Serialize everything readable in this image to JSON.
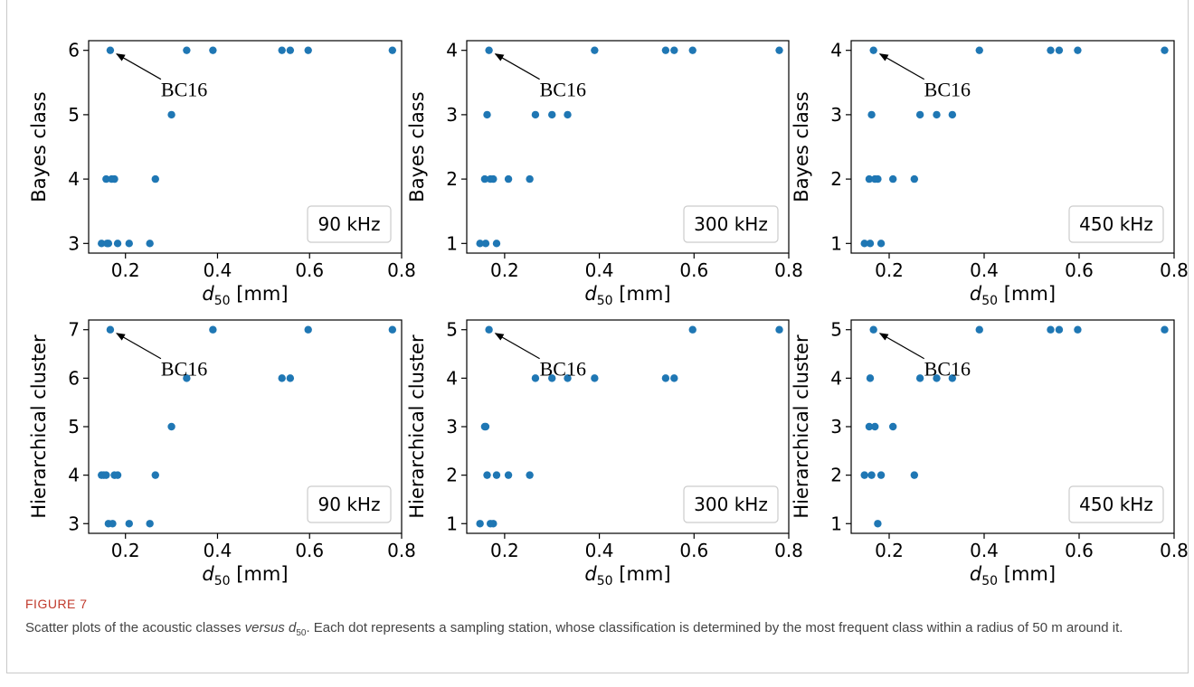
{
  "caption": {
    "label": "FIGURE 7",
    "text_a": "Scatter plots of the acoustic classes ",
    "text_versus": "versus",
    "text_d": " d",
    "text_sub": "50",
    "text_b": ". Each dot represents a sampling station, whose classification is determined by the most frequent class within a radius of 50 m around it."
  },
  "colors": {
    "points": "#1f77b4",
    "axes": "#000000",
    "legend_border": "#cccccc"
  },
  "x_values": [
    0.148,
    0.158,
    0.163,
    0.167,
    0.176,
    0.183,
    0.208,
    0.253,
    0.265,
    0.3,
    0.333,
    0.39,
    0.54,
    0.558,
    0.597,
    0.78
  ],
  "chart_data": [
    {
      "type": "scatter",
      "id": "bayes-90",
      "x": [
        0.148,
        0.158,
        0.163,
        0.167,
        0.176,
        0.183,
        0.208,
        0.253,
        0.265,
        0.3,
        0.333,
        0.39,
        0.54,
        0.558,
        0.597,
        0.78,
        0.16,
        0.17
      ],
      "y": [
        3,
        4,
        3,
        6,
        4,
        3,
        3,
        3,
        4,
        5,
        6,
        6,
        6,
        6,
        6,
        6,
        3,
        4
      ],
      "xlabel": "d",
      "xlabel_sub": "50",
      "xlabel_unit": " [mm]",
      "ylabel": "Bayes class",
      "xlim": [
        0.12,
        0.8
      ],
      "ylim": [
        2.85,
        6.15
      ],
      "xticks": [
        0.2,
        0.4,
        0.6,
        0.8
      ],
      "xtick_labels": [
        "0.2",
        "0.4",
        "0.6",
        "0.8"
      ],
      "yticks": [
        3,
        4,
        5,
        6
      ],
      "ytick_labels": [
        "3",
        "4",
        "5",
        "6"
      ],
      "legend": "90 kHz",
      "legend_placement": "bottom-right",
      "annotation": {
        "text": "BC16",
        "x": 0.167,
        "y": 6
      }
    },
    {
      "type": "scatter",
      "id": "bayes-300",
      "x": [
        0.148,
        0.158,
        0.163,
        0.167,
        0.176,
        0.183,
        0.208,
        0.253,
        0.265,
        0.3,
        0.333,
        0.39,
        0.54,
        0.558,
        0.597,
        0.78,
        0.16,
        0.17
      ],
      "y": [
        1,
        2,
        3,
        4,
        2,
        1,
        2,
        2,
        3,
        3,
        3,
        4,
        4,
        4,
        4,
        4,
        1,
        2
      ],
      "xlabel": "d",
      "xlabel_sub": "50",
      "xlabel_unit": " [mm]",
      "ylabel": "Bayes class",
      "xlim": [
        0.12,
        0.8
      ],
      "ylim": [
        0.85,
        4.15
      ],
      "xticks": [
        0.2,
        0.4,
        0.6,
        0.8
      ],
      "xtick_labels": [
        "0.2",
        "0.4",
        "0.6",
        "0.8"
      ],
      "yticks": [
        1,
        2,
        3,
        4
      ],
      "ytick_labels": [
        "1",
        "2",
        "3",
        "4"
      ],
      "legend": "300 kHz",
      "legend_placement": "bottom-right",
      "annotation": {
        "text": "BC16",
        "x": 0.167,
        "y": 4
      }
    },
    {
      "type": "scatter",
      "id": "bayes-450",
      "x": [
        0.148,
        0.158,
        0.163,
        0.167,
        0.176,
        0.183,
        0.208,
        0.253,
        0.265,
        0.3,
        0.333,
        0.39,
        0.54,
        0.558,
        0.597,
        0.78,
        0.16,
        0.17
      ],
      "y": [
        1,
        2,
        3,
        4,
        2,
        1,
        2,
        2,
        3,
        3,
        3,
        4,
        4,
        4,
        4,
        4,
        1,
        2
      ],
      "xlabel": "d",
      "xlabel_sub": "50",
      "xlabel_unit": " [mm]",
      "ylabel": "Bayes class",
      "xlim": [
        0.12,
        0.8
      ],
      "ylim": [
        0.85,
        4.15
      ],
      "xticks": [
        0.2,
        0.4,
        0.6,
        0.8
      ],
      "xtick_labels": [
        "0.2",
        "0.4",
        "0.6",
        "0.8"
      ],
      "yticks": [
        1,
        2,
        3,
        4
      ],
      "ytick_labels": [
        "1",
        "2",
        "3",
        "4"
      ],
      "legend": "450 kHz",
      "legend_placement": "bottom-right",
      "annotation": {
        "text": "BC16",
        "x": 0.167,
        "y": 4
      }
    },
    {
      "type": "scatter",
      "id": "hier-90",
      "x": [
        0.148,
        0.158,
        0.163,
        0.167,
        0.176,
        0.183,
        0.208,
        0.253,
        0.265,
        0.3,
        0.333,
        0.39,
        0.54,
        0.558,
        0.597,
        0.78,
        0.153,
        0.172
      ],
      "y": [
        4,
        4,
        3,
        7,
        4,
        4,
        3,
        3,
        4,
        5,
        6,
        7,
        6,
        6,
        7,
        7,
        4,
        3
      ],
      "xlabel": "d",
      "xlabel_sub": "50",
      "xlabel_unit": " [mm]",
      "ylabel": "Hierarchical cluster",
      "xlim": [
        0.12,
        0.8
      ],
      "ylim": [
        2.8,
        7.2
      ],
      "xticks": [
        0.2,
        0.4,
        0.6,
        0.8
      ],
      "xtick_labels": [
        "0.2",
        "0.4",
        "0.6",
        "0.8"
      ],
      "yticks": [
        3,
        4,
        5,
        6,
        7
      ],
      "ytick_labels": [
        "3",
        "4",
        "5",
        "6",
        "7"
      ],
      "legend": "90 kHz",
      "legend_placement": "bottom-right",
      "annotation": {
        "text": "BC16",
        "x": 0.167,
        "y": 7
      }
    },
    {
      "type": "scatter",
      "id": "hier-300",
      "x": [
        0.148,
        0.158,
        0.163,
        0.167,
        0.176,
        0.183,
        0.208,
        0.253,
        0.265,
        0.3,
        0.333,
        0.39,
        0.54,
        0.558,
        0.597,
        0.78,
        0.16,
        0.17
      ],
      "y": [
        1,
        3,
        2,
        5,
        1,
        2,
        2,
        2,
        4,
        4,
        4,
        4,
        4,
        4,
        5,
        5,
        3,
        1
      ],
      "xlabel": "d",
      "xlabel_sub": "50",
      "xlabel_unit": " [mm]",
      "ylabel": "Hierarchical cluster",
      "xlim": [
        0.12,
        0.8
      ],
      "ylim": [
        0.8,
        5.2
      ],
      "xticks": [
        0.2,
        0.4,
        0.6,
        0.8
      ],
      "xtick_labels": [
        "0.2",
        "0.4",
        "0.6",
        "0.8"
      ],
      "yticks": [
        1,
        2,
        3,
        4,
        5
      ],
      "ytick_labels": [
        "1",
        "2",
        "3",
        "4",
        "5"
      ],
      "legend": "300 kHz",
      "legend_placement": "bottom-right",
      "annotation": {
        "text": "BC16",
        "x": 0.167,
        "y": 5
      }
    },
    {
      "type": "scatter",
      "id": "hier-450",
      "x": [
        0.148,
        0.158,
        0.163,
        0.167,
        0.176,
        0.183,
        0.208,
        0.253,
        0.265,
        0.3,
        0.333,
        0.39,
        0.54,
        0.558,
        0.597,
        0.78,
        0.16,
        0.17
      ],
      "y": [
        2,
        3,
        2,
        5,
        1,
        2,
        3,
        2,
        4,
        4,
        4,
        5,
        5,
        5,
        5,
        5,
        4,
        3
      ],
      "xlabel": "d",
      "xlabel_sub": "50",
      "xlabel_unit": " [mm]",
      "ylabel": "Hierarchical cluster",
      "xlim": [
        0.12,
        0.8
      ],
      "ylim": [
        0.8,
        5.2
      ],
      "xticks": [
        0.2,
        0.4,
        0.6,
        0.8
      ],
      "xtick_labels": [
        "0.2",
        "0.4",
        "0.6",
        "0.8"
      ],
      "yticks": [
        1,
        2,
        3,
        4,
        5
      ],
      "ytick_labels": [
        "1",
        "2",
        "3",
        "4",
        "5"
      ],
      "legend": "450 kHz",
      "legend_placement": "bottom-right",
      "annotation": {
        "text": "BC16",
        "x": 0.167,
        "y": 5
      }
    }
  ]
}
